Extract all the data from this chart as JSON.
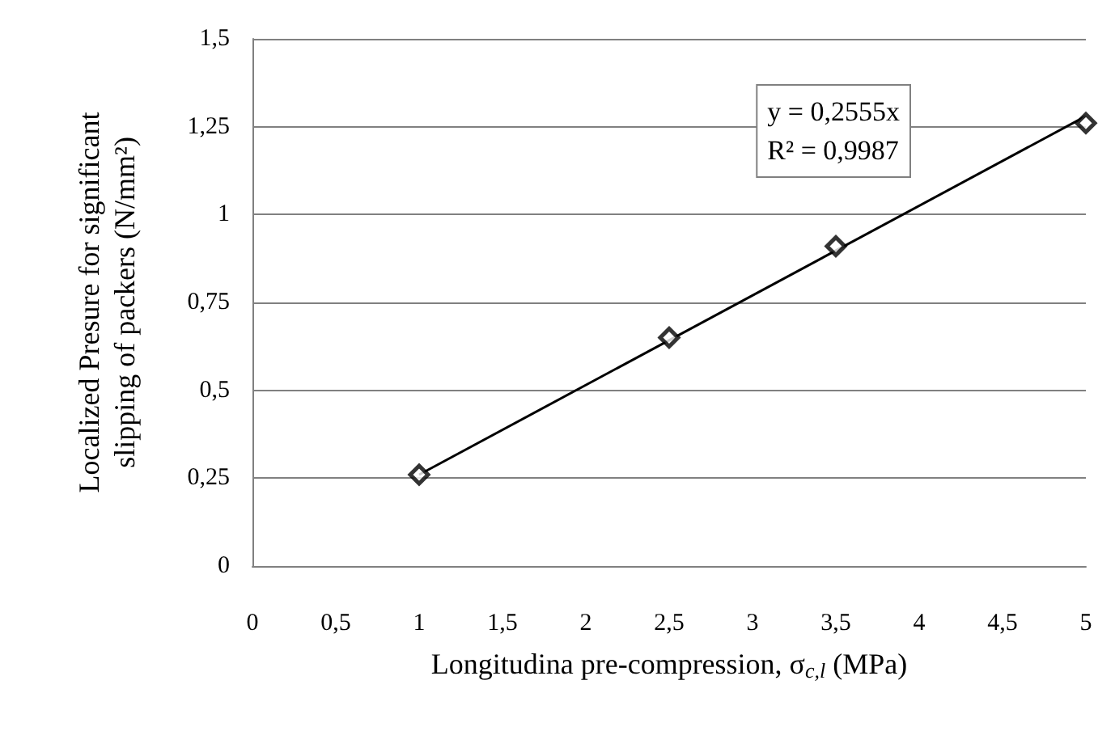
{
  "chart_data": {
    "type": "scatter",
    "xlabel": "Longitudina pre-compression, σ$_{c,l}$ (MPa)",
    "ylabel": "Localized Presure for significant\nslipping of packers (N/mm²)",
    "annotations": [
      "y = 0,2555x\nR² = 0,9987"
    ],
    "series": [
      {
        "color": "#000000",
        "x": [
          1,
          2.5,
          3.5,
          5
        ],
        "values": [
          0.26,
          0.65,
          0.91,
          1.26
        ]
      },
      {
        "type": "line",
        "marker": "none",
        "color": "#000000",
        "x": [
          1,
          5
        ],
        "values": [
          0.26,
          1.28
        ]
      }
    ],
    "marker": "diamond",
    "grid": "y",
    "xlim": [
      0,
      5
    ],
    "xticks": [
      0,
      {
        "value": 0.5,
        "label": "0,5"
      },
      1,
      {
        "value": 1.5,
        "label": "1,5"
      },
      2,
      {
        "value": 2.5,
        "label": "2,5"
      },
      3,
      {
        "value": 3.5,
        "label": "3,5"
      },
      4,
      {
        "value": 4.5,
        "label": "4,5"
      },
      5
    ],
    "ylim": [
      0,
      1.5
    ],
    "yticks": [
      0,
      {
        "value": 0.25,
        "label": "0,25"
      },
      {
        "value": 0.5,
        "label": "0,5"
      },
      {
        "value": 0.75,
        "label": "0,75"
      },
      1,
      {
        "value": 1.25,
        "label": "1,25"
      },
      {
        "value": 1.5,
        "label": "1,5"
      }
    ]
  }
}
